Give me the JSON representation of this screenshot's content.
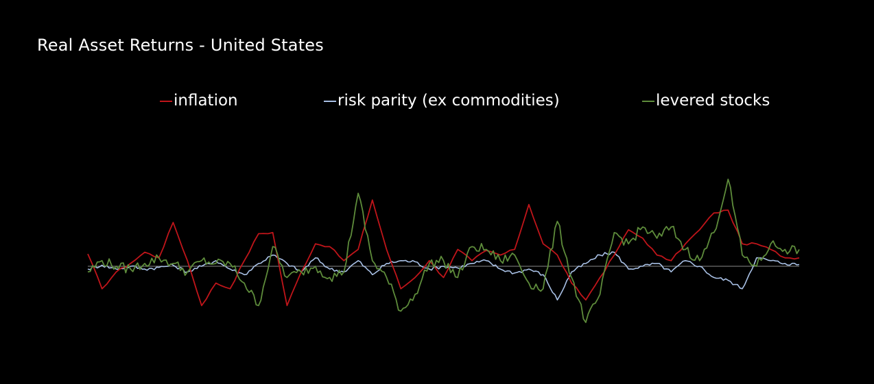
{
  "chart_data": {
    "type": "line",
    "title": "Real Asset Returns - United States",
    "xlabel": "",
    "ylabel": "",
    "legend_position": "top",
    "grid": false,
    "baseline": 0,
    "ylim": [
      -100,
      180
    ],
    "x": [
      0,
      0.02,
      0.04,
      0.06,
      0.08,
      0.1,
      0.12,
      0.14,
      0.16,
      0.18,
      0.2,
      0.22,
      0.24,
      0.26,
      0.28,
      0.3,
      0.32,
      0.34,
      0.36,
      0.38,
      0.4,
      0.42,
      0.44,
      0.46,
      0.48,
      0.5,
      0.52,
      0.54,
      0.56,
      0.58,
      0.6,
      0.62,
      0.64,
      0.66,
      0.68,
      0.7,
      0.72,
      0.74,
      0.76,
      0.78,
      0.8,
      0.82,
      0.84,
      0.86,
      0.88,
      0.9,
      0.92,
      0.94,
      0.96,
      0.98,
      1
    ],
    "series": [
      {
        "name": "inflation",
        "color": "#c0151a",
        "values": [
          22,
          -40,
          -10,
          5,
          25,
          15,
          78,
          10,
          -70,
          -30,
          -40,
          10,
          58,
          60,
          -70,
          -10,
          40,
          35,
          10,
          30,
          118,
          30,
          -40,
          -20,
          10,
          -20,
          30,
          10,
          28,
          20,
          30,
          110,
          40,
          20,
          -30,
          -60,
          -20,
          20,
          65,
          50,
          20,
          10,
          40,
          65,
          95,
          100,
          40,
          40,
          30,
          15,
          15
        ]
      },
      {
        "name": "risk parity (ex commodities)",
        "color": "#a9c1e6",
        "values": [
          -5,
          2,
          -5,
          0,
          -5,
          -2,
          2,
          -10,
          0,
          10,
          -5,
          -15,
          5,
          20,
          5,
          -10,
          15,
          -5,
          -10,
          10,
          -15,
          5,
          10,
          8,
          -5,
          0,
          -3,
          5,
          10,
          -5,
          -12,
          -5,
          -15,
          -60,
          -10,
          5,
          20,
          25,
          -5,
          0,
          5,
          -10,
          10,
          0,
          -20,
          -25,
          -40,
          15,
          10,
          5,
          3
        ]
      },
      {
        "name": "levered stocks",
        "color": "#5e8c3b",
        "values": [
          -10,
          10,
          0,
          -5,
          5,
          15,
          5,
          -10,
          10,
          5,
          5,
          -30,
          -70,
          35,
          -20,
          -10,
          0,
          -20,
          -10,
          130,
          10,
          -20,
          -80,
          -50,
          5,
          10,
          -20,
          35,
          30,
          10,
          20,
          -30,
          -40,
          80,
          -20,
          -100,
          -50,
          60,
          40,
          70,
          50,
          70,
          30,
          10,
          60,
          155,
          20,
          0,
          40,
          30,
          30
        ]
      }
    ]
  }
}
